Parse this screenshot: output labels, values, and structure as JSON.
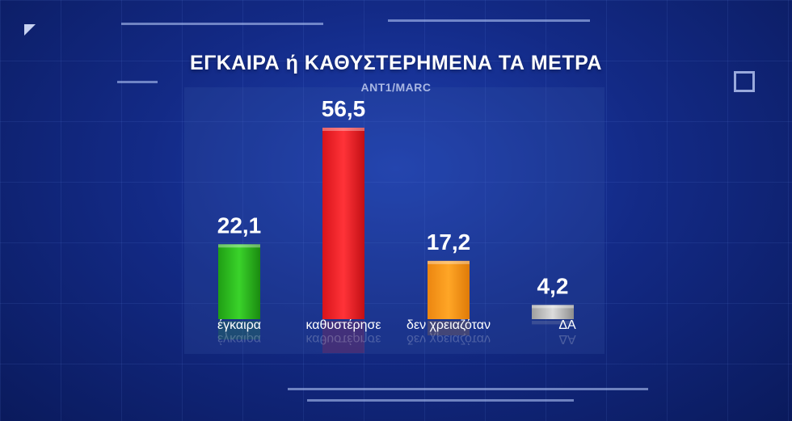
{
  "header": {
    "title": "ΕΓΚΑΙΡΑ ή ΚΑΘΥΣΤΕΡΗΜΕΝΑ ΤΑ ΜΕΤΡΑ",
    "source": "ANT1/MARC"
  },
  "chart_data": {
    "type": "bar",
    "title": "ΕΓΚΑΙΡΑ ή ΚΑΘΥΣΤΕΡΗΜΕΝΑ ΤΑ ΜΕΤΡΑ",
    "subtitle": "ANT1/MARC",
    "categories": [
      "έγκαιρα",
      "καθυστέρησε",
      "δεν χρειαζόταν",
      "ΔΑ"
    ],
    "values": [
      22.1,
      56.5,
      17.2,
      4.2
    ],
    "value_labels": [
      "22,1",
      "56,5",
      "17,2",
      "4,2"
    ],
    "colors": [
      "#2fc41f",
      "#f3232a",
      "#fb9b1a",
      "#c9c9c9"
    ],
    "ylim": [
      0,
      60
    ],
    "grid": false,
    "legend": "none"
  }
}
